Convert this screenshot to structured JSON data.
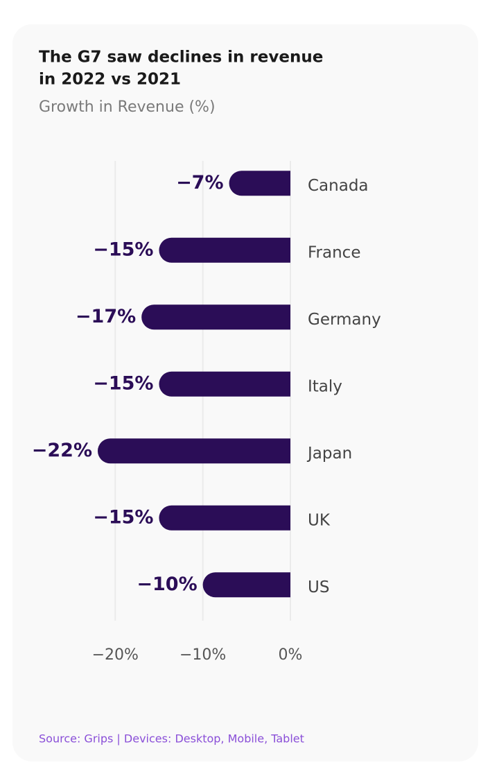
{
  "chart_data": {
    "type": "hbar",
    "title": [
      "The G7 saw declines in revenue",
      "in 2022 vs 2021"
    ],
    "subtitle": "Growth in Revenue (%)",
    "categories": [
      "Canada",
      "France",
      "Germany",
      "Italy",
      "Japan",
      "UK",
      "US"
    ],
    "values": [
      -7,
      -15,
      -17,
      -15,
      -22,
      -15,
      -10
    ],
    "value_labels": [
      "−7%",
      "−15%",
      "−17%",
      "−15%",
      "−22%",
      "−15%",
      "−10%"
    ],
    "color": "#2b0d57",
    "xlim": [
      -22,
      0
    ],
    "xticks": [
      {
        "value": -20,
        "label": "−20%"
      },
      {
        "value": -10,
        "label": "−10%"
      },
      {
        "value": 0,
        "label": "0%"
      }
    ],
    "grid": true,
    "source": "Source: Grips | Devices: Desktop, Mobile, Tablet"
  }
}
